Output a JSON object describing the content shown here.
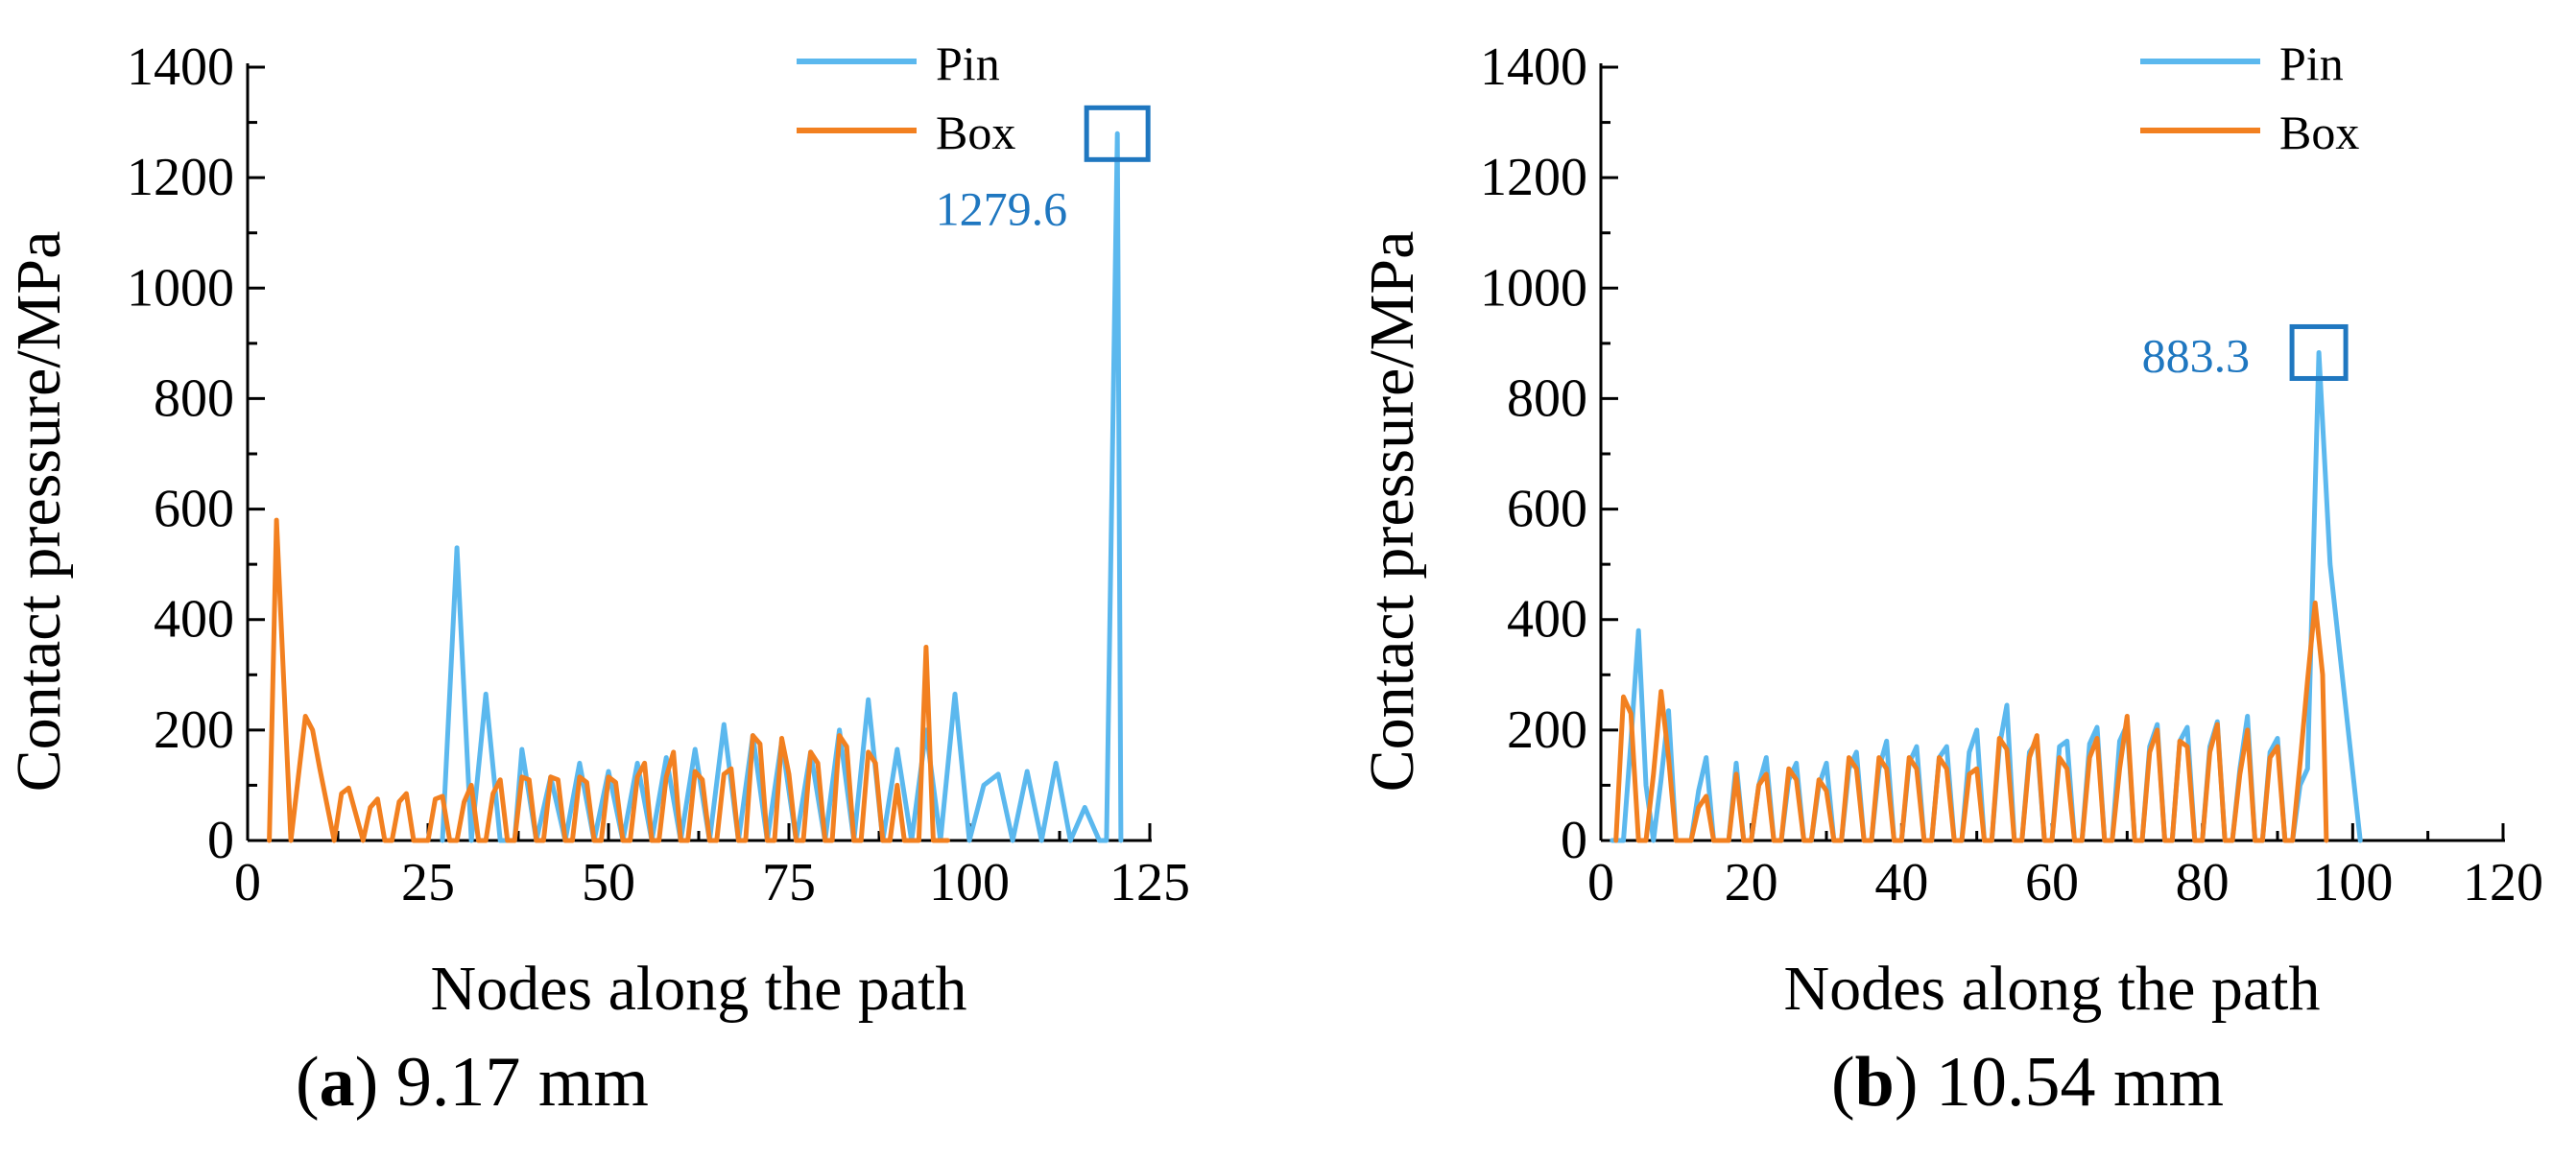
{
  "chart_data": [
    {
      "type": "line",
      "caption_letter": "a",
      "caption_text": "9.17 mm",
      "xlabel": "Nodes along the path",
      "ylabel": "Contact pressure/MPa",
      "xlim": [
        0,
        125
      ],
      "ylim": [
        0,
        1400
      ],
      "xticks": [
        0,
        25,
        50,
        75,
        100,
        125
      ],
      "yticks": [
        0,
        200,
        400,
        600,
        800,
        1000,
        1200,
        1400
      ],
      "grid": false,
      "legend_position": "top-right",
      "annotation": {
        "text": "1279.6",
        "x": 120.5,
        "y": 1279.6,
        "color": "#1f77c0"
      },
      "series": [
        {
          "name": "Pin",
          "color": "#5bb8ee",
          "x": [
            27,
            29,
            31,
            33,
            35,
            37,
            38,
            40,
            42,
            44,
            46,
            48,
            50,
            52,
            54,
            56,
            58,
            60,
            62,
            64,
            66,
            68,
            70,
            72,
            74,
            76,
            78,
            80,
            82,
            84,
            86,
            88,
            90,
            92,
            94,
            96,
            98,
            100,
            102,
            104,
            106,
            108,
            110,
            112,
            114,
            116,
            118,
            119,
            120.5,
            121
          ],
          "y": [
            0,
            530,
            0,
            265,
            0,
            0,
            165,
            0,
            115,
            0,
            140,
            0,
            125,
            0,
            140,
            0,
            150,
            0,
            165,
            0,
            210,
            0,
            190,
            0,
            180,
            0,
            160,
            0,
            200,
            0,
            255,
            0,
            165,
            0,
            200,
            0,
            265,
            0,
            100,
            120,
            0,
            125,
            0,
            140,
            0,
            60,
            0,
            0,
            1279.6,
            0
          ]
        },
        {
          "name": "Box",
          "color": "#f28020",
          "x": [
            3,
            4,
            6,
            8,
            9,
            10,
            12,
            13,
            14,
            16,
            17,
            18,
            19,
            20,
            21,
            22,
            23,
            24,
            25,
            26,
            27,
            28,
            29,
            30,
            31,
            32,
            33,
            34,
            35,
            36,
            37,
            38,
            39,
            40,
            41,
            42,
            43,
            44,
            45,
            46,
            47,
            48,
            49,
            50,
            51,
            52,
            53,
            54,
            55,
            56,
            57,
            58,
            59,
            60,
            61,
            62,
            63,
            64,
            65,
            66,
            67,
            68,
            69,
            70,
            71,
            72,
            73,
            74,
            75,
            76,
            77,
            78,
            79,
            80,
            81,
            82,
            83,
            84,
            85,
            86,
            87,
            88,
            89,
            90,
            91,
            92,
            93,
            94,
            95,
            96,
            97
          ],
          "y": [
            0,
            580,
            0,
            225,
            200,
            130,
            0,
            85,
            95,
            0,
            60,
            75,
            0,
            0,
            70,
            85,
            0,
            0,
            0,
            75,
            80,
            0,
            0,
            70,
            100,
            0,
            0,
            85,
            110,
            0,
            0,
            115,
            110,
            0,
            0,
            115,
            110,
            0,
            0,
            115,
            105,
            0,
            0,
            115,
            105,
            0,
            0,
            115,
            140,
            0,
            0,
            115,
            160,
            0,
            0,
            125,
            110,
            0,
            0,
            120,
            130,
            0,
            0,
            190,
            175,
            0,
            0,
            185,
            120,
            0,
            0,
            160,
            140,
            0,
            0,
            190,
            170,
            0,
            0,
            160,
            140,
            0,
            0,
            100,
            0,
            0,
            0,
            350,
            0,
            0,
            0
          ]
        }
      ]
    },
    {
      "type": "line",
      "caption_letter": "b",
      "caption_text": "10.54 mm",
      "xlabel": "Nodes along the path",
      "ylabel": "Contact pressure/MPa",
      "xlim": [
        0,
        120
      ],
      "ylim": [
        0,
        1400
      ],
      "xticks": [
        0,
        20,
        40,
        60,
        80,
        100,
        120
      ],
      "yticks": [
        0,
        200,
        400,
        600,
        800,
        1000,
        1200,
        1400
      ],
      "grid": false,
      "legend_position": "top-right",
      "annotation": {
        "text": "883.3",
        "x": 95.5,
        "y": 883.3,
        "color": "#1f77c0"
      },
      "series": [
        {
          "name": "Pin",
          "color": "#5bb8ee",
          "x": [
            1.5,
            3,
            4,
            5,
            6,
            7,
            8,
            9,
            10,
            11,
            12,
            13,
            14,
            15,
            16,
            17,
            18,
            19,
            20,
            21,
            22,
            23,
            24,
            25,
            26,
            27,
            28,
            29,
            30,
            31,
            32,
            33,
            34,
            35,
            36,
            37,
            38,
            39,
            40,
            41,
            42,
            43,
            44,
            45,
            46,
            47,
            48,
            49,
            50,
            51,
            52,
            53,
            54,
            55,
            56,
            57,
            58,
            59,
            60,
            61,
            62,
            63,
            64,
            65,
            66,
            67,
            68,
            69,
            70,
            71,
            72,
            73,
            74,
            75,
            76,
            77,
            78,
            79,
            80,
            81,
            82,
            83,
            84,
            85,
            86,
            87,
            88,
            89,
            90,
            91,
            92,
            93,
            94,
            95.5,
            97,
            101
          ],
          "y": [
            0,
            0,
            180,
            380,
            100,
            0,
            110,
            235,
            0,
            0,
            0,
            90,
            150,
            0,
            0,
            0,
            140,
            0,
            0,
            100,
            150,
            0,
            0,
            110,
            140,
            0,
            0,
            100,
            140,
            0,
            0,
            130,
            160,
            0,
            0,
            130,
            180,
            0,
            0,
            140,
            170,
            0,
            0,
            150,
            170,
            0,
            0,
            160,
            200,
            0,
            0,
            170,
            245,
            0,
            0,
            160,
            180,
            0,
            0,
            170,
            180,
            0,
            0,
            175,
            205,
            0,
            0,
            180,
            210,
            0,
            0,
            170,
            210,
            0,
            0,
            180,
            205,
            0,
            0,
            170,
            215,
            0,
            0,
            130,
            225,
            0,
            0,
            160,
            185,
            0,
            0,
            100,
            130,
            883.3,
            500,
            0
          ]
        },
        {
          "name": "Box",
          "color": "#f28020",
          "x": [
            2,
            3,
            4,
            5,
            6,
            7,
            8,
            9,
            10,
            11,
            12,
            13,
            14,
            15,
            16,
            17,
            18,
            19,
            20,
            21,
            22,
            23,
            24,
            25,
            26,
            27,
            28,
            29,
            30,
            31,
            32,
            33,
            34,
            35,
            36,
            37,
            38,
            39,
            40,
            41,
            42,
            43,
            44,
            45,
            46,
            47,
            48,
            49,
            50,
            51,
            52,
            53,
            54,
            55,
            56,
            57,
            58,
            59,
            60,
            61,
            62,
            63,
            64,
            65,
            66,
            67,
            68,
            69,
            70,
            71,
            72,
            73,
            74,
            75,
            76,
            77,
            78,
            79,
            80,
            81,
            82,
            83,
            84,
            85,
            86,
            87,
            88,
            89,
            90,
            91,
            92,
            93,
            94,
            95,
            96,
            96.5
          ],
          "y": [
            0,
            260,
            230,
            0,
            0,
            120,
            270,
            150,
            0,
            0,
            0,
            60,
            80,
            0,
            0,
            0,
            120,
            0,
            0,
            100,
            120,
            0,
            0,
            130,
            110,
            0,
            0,
            110,
            90,
            0,
            0,
            150,
            130,
            0,
            0,
            150,
            130,
            0,
            0,
            150,
            130,
            0,
            0,
            150,
            130,
            0,
            0,
            120,
            130,
            0,
            0,
            185,
            165,
            0,
            0,
            150,
            190,
            0,
            0,
            150,
            130,
            0,
            0,
            150,
            185,
            0,
            0,
            130,
            225,
            0,
            0,
            160,
            200,
            0,
            0,
            180,
            170,
            0,
            0,
            160,
            210,
            0,
            0,
            120,
            200,
            0,
            0,
            150,
            170,
            0,
            0,
            140,
            290,
            430,
            300,
            0
          ]
        }
      ]
    }
  ]
}
